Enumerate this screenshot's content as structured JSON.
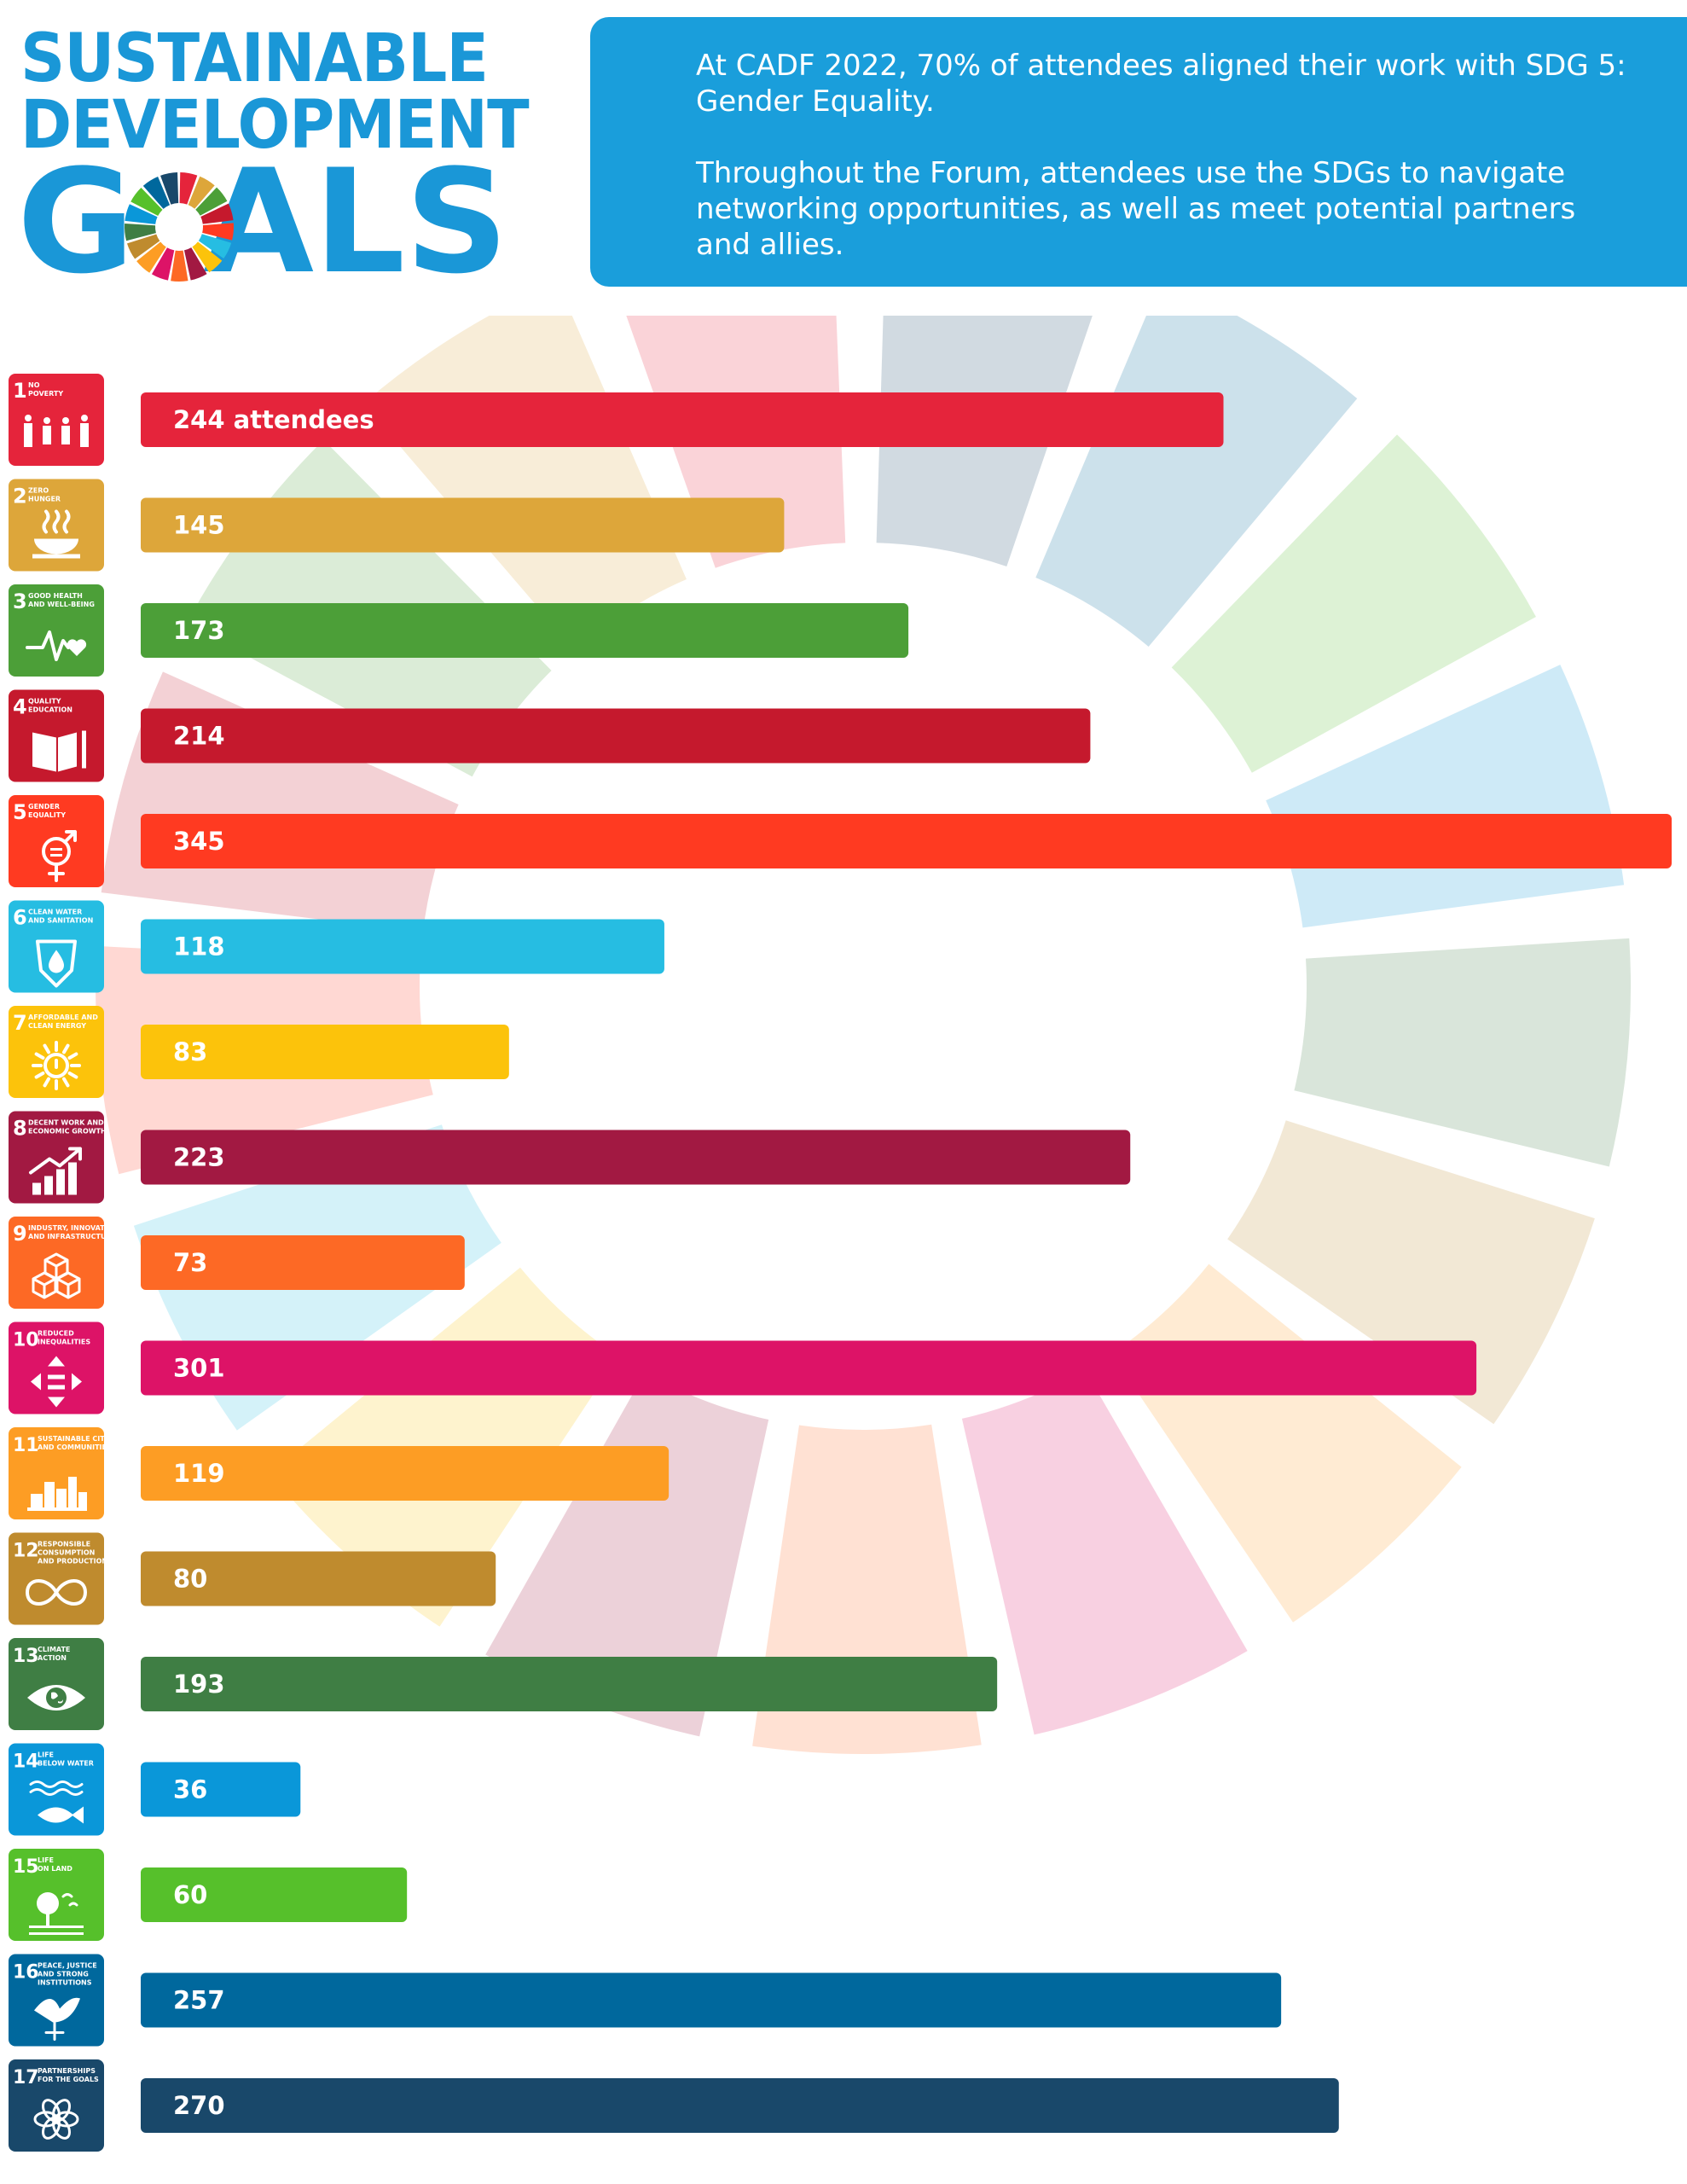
{
  "logo": {
    "line1": "SUSTAINABLE",
    "line2": "DEVELOPMENT",
    "line3": "GOALS",
    "color": "#1a97d7"
  },
  "info": {
    "paragraph1": "At CADF 2022, 70% of attendees aligned their work with SDG 5: Gender Equality.",
    "paragraph2": "Throughout the Forum, attendees use the SDGs to navigate networking opportunities, as well as meet potential partners and allies.",
    "background": "#1a9edb"
  },
  "chart_data": {
    "type": "bar",
    "orientation": "horizontal",
    "value_unit_label": "attendees",
    "xlim": [
      0,
      345
    ],
    "categories": [
      {
        "number": "1",
        "name": [
          "NO",
          "POVERTY"
        ],
        "icon": "family-icon",
        "color": "#e5243b",
        "value": 244,
        "label": "244 attendees"
      },
      {
        "number": "2",
        "name": [
          "ZERO",
          "HUNGER"
        ],
        "icon": "bowl-icon",
        "color": "#dda63a",
        "value": 145,
        "label": "145"
      },
      {
        "number": "3",
        "name": [
          "GOOD HEALTH",
          "AND WELL-BEING"
        ],
        "icon": "heartbeat-icon",
        "color": "#4c9f38",
        "value": 173,
        "label": "173"
      },
      {
        "number": "4",
        "name": [
          "QUALITY",
          "EDUCATION"
        ],
        "icon": "book-icon",
        "color": "#c5192d",
        "value": 214,
        "label": "214"
      },
      {
        "number": "5",
        "name": [
          "GENDER",
          "EQUALITY"
        ],
        "icon": "gender-icon",
        "color": "#ff3a21",
        "value": 345,
        "label": "345"
      },
      {
        "number": "6",
        "name": [
          "CLEAN WATER",
          "AND SANITATION"
        ],
        "icon": "water-drop-icon",
        "color": "#26bde2",
        "value": 118,
        "label": "118"
      },
      {
        "number": "7",
        "name": [
          "AFFORDABLE AND",
          "CLEAN ENERGY"
        ],
        "icon": "sun-power-icon",
        "color": "#fcc30b",
        "value": 83,
        "label": "83"
      },
      {
        "number": "8",
        "name": [
          "DECENT WORK AND",
          "ECONOMIC GROWTH"
        ],
        "icon": "growth-chart-icon",
        "color": "#a21942",
        "value": 223,
        "label": "223"
      },
      {
        "number": "9",
        "name": [
          "INDUSTRY, INNOVATION",
          "AND INFRASTRUCTURE"
        ],
        "icon": "cubes-icon",
        "color": "#fd6925",
        "value": 73,
        "label": "73"
      },
      {
        "number": "10",
        "name": [
          "REDUCED",
          "INEQUALITIES"
        ],
        "icon": "equals-arrows-icon",
        "color": "#dd1367",
        "value": 301,
        "label": "301"
      },
      {
        "number": "11",
        "name": [
          "SUSTAINABLE CITIES",
          "AND COMMUNITIES"
        ],
        "icon": "city-icon",
        "color": "#fd9d24",
        "value": 119,
        "label": "119"
      },
      {
        "number": "12",
        "name": [
          "RESPONSIBLE",
          "CONSUMPTION",
          "AND PRODUCTION"
        ],
        "icon": "infinity-icon",
        "color": "#bf8b2e",
        "value": 80,
        "label": "80"
      },
      {
        "number": "13",
        "name": [
          "CLIMATE",
          "ACTION"
        ],
        "icon": "eye-earth-icon",
        "color": "#3f7e44",
        "value": 193,
        "label": "193"
      },
      {
        "number": "14",
        "name": [
          "LIFE",
          "BELOW WATER"
        ],
        "icon": "fish-icon",
        "color": "#0a97d9",
        "value": 36,
        "label": "36"
      },
      {
        "number": "15",
        "name": [
          "LIFE",
          "ON LAND"
        ],
        "icon": "tree-icon",
        "color": "#56c02b",
        "value": 60,
        "label": "60"
      },
      {
        "number": "16",
        "name": [
          "PEACE, JUSTICE",
          "AND STRONG",
          "INSTITUTIONS"
        ],
        "icon": "dove-icon",
        "color": "#00689d",
        "value": 257,
        "label": "257"
      },
      {
        "number": "17",
        "name": [
          "PARTNERSHIPS",
          "FOR THE GOALS"
        ],
        "icon": "flower-icon",
        "color": "#19486a",
        "value": 270,
        "label": "270"
      }
    ],
    "grid": false,
    "legend": "none"
  }
}
